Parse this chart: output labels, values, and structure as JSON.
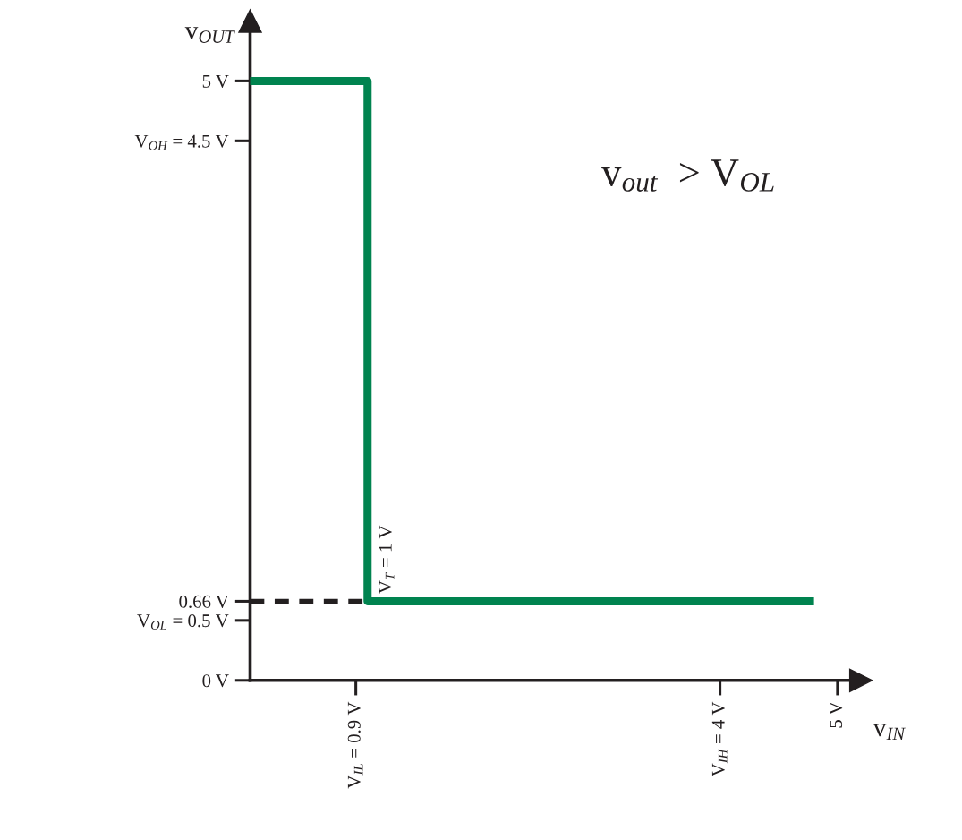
{
  "chart_data": {
    "type": "line",
    "xlabel": "v$_{IN}$",
    "ylabel": "v$_{OUT}$",
    "annotations": [
      "v$_{out}$  > V$_{OL}$",
      {
        "text": "V$_{T}$ = 1 V",
        "x": 1,
        "y": 0.66
      }
    ],
    "series": [
      {
        "color": "#00834f",
        "x": [
          0,
          1,
          1,
          4.8
        ],
        "values": [
          5,
          5,
          0.66,
          0.66
        ]
      }
    ],
    "xlim": [
      0,
      5.2
    ],
    "ylim": [
      0,
      5.5
    ],
    "xticks": [
      {
        "value": 0.9,
        "label": "V$_{IL}$ = 0.9 V"
      },
      {
        "value": 4,
        "label": "V$_{IH}$ = 4 V"
      },
      {
        "value": 5,
        "label": "5 V"
      }
    ],
    "yticks": [
      {
        "value": 0,
        "label": "0 V"
      },
      {
        "value": 0.5,
        "label": "V$_{OL}$ = 0.5 V"
      },
      {
        "value": 0.66,
        "label": "0.66 V"
      },
      {
        "value": 4.5,
        "label": "V$_{OH}$ = 4.5 V"
      },
      {
        "value": 5,
        "label": "5 V"
      }
    ],
    "ref_lines": [
      {
        "axis": "y",
        "value": 0.66,
        "color": "#231f20",
        "line_style": "dashed"
      }
    ],
    "grid": false,
    "line_style": "solid"
  }
}
